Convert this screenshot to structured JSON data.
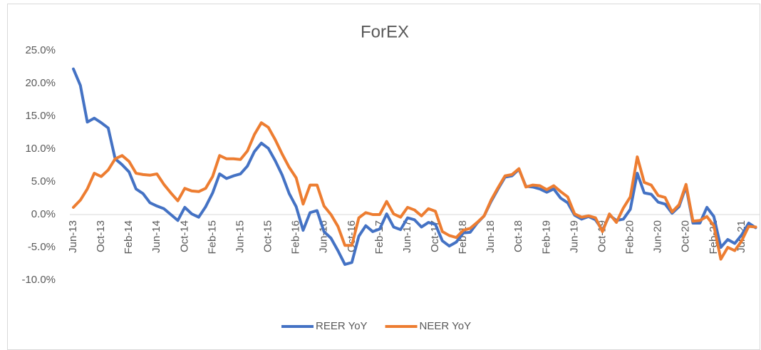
{
  "chart_data": {
    "type": "line",
    "title": "ForEX",
    "categories": [
      "Jun-13",
      null,
      null,
      null,
      "Oct-13",
      null,
      null,
      null,
      "Feb-14",
      null,
      null,
      null,
      "Jun-14",
      null,
      null,
      null,
      "Oct-14",
      null,
      null,
      null,
      "Feb-15",
      null,
      null,
      null,
      "Jun-15",
      null,
      null,
      null,
      "Oct-15",
      null,
      null,
      null,
      "Feb-16",
      null,
      null,
      null,
      "Jun-16",
      null,
      null,
      null,
      "Oct-16",
      null,
      null,
      null,
      "Feb-17",
      null,
      null,
      null,
      "Jun-17",
      null,
      null,
      null,
      "Oct-17",
      null,
      null,
      null,
      "Feb-18",
      null,
      null,
      null,
      "Jun-18",
      null,
      null,
      null,
      "Oct-18",
      null,
      null,
      null,
      "Feb-19",
      null,
      null,
      null,
      "Jun-19",
      null,
      null,
      null,
      "Oct-19",
      null,
      null,
      null,
      "Feb-20",
      null,
      null,
      null,
      "Jun-20",
      null,
      null,
      null,
      "Oct-20",
      null,
      null,
      null,
      "Feb-21",
      null,
      null,
      null,
      "Jun-21",
      null,
      null
    ],
    "series": [
      {
        "name": "REER YoY",
        "color": "#4472c4",
        "values": [
          22.2,
          19.7,
          14.1,
          14.7,
          14.0,
          13.2,
          8.5,
          7.6,
          6.5,
          3.9,
          3.2,
          1.8,
          1.3,
          0.9,
          0.0,
          -0.9,
          1.1,
          0.1,
          -0.4,
          1.2,
          3.3,
          6.2,
          5.5,
          5.9,
          6.2,
          7.4,
          9.6,
          10.9,
          10.1,
          8.2,
          6.0,
          3.2,
          1.2,
          -2.4,
          0.3,
          0.6,
          -2.6,
          -3.6,
          -5.5,
          -7.6,
          -7.3,
          -3.3,
          -1.7,
          -2.6,
          -2.2,
          0.1,
          -1.9,
          -2.3,
          -0.5,
          -0.8,
          -1.9,
          -1.2,
          -1.5,
          -4.0,
          -4.8,
          -4.2,
          -2.8,
          -2.7,
          -1.3,
          -0.2,
          2.0,
          3.9,
          5.7,
          5.9,
          6.9,
          4.3,
          4.2,
          3.9,
          3.4,
          3.9,
          2.5,
          1.8,
          -0.1,
          -0.7,
          -0.3,
          -0.8,
          -2.4,
          -0.1,
          -0.9,
          -0.7,
          0.8,
          6.3,
          3.3,
          3.1,
          1.9,
          1.6,
          0.2,
          1.2,
          4.3,
          -1.3,
          -1.3,
          1.1,
          -0.3,
          -5.0,
          -3.8,
          -4.4,
          -3.1,
          -1.3,
          -2.0
        ]
      },
      {
        "name": "NEER YoY",
        "color": "#ed7d31",
        "values": [
          1.1,
          2.2,
          3.9,
          6.3,
          5.8,
          6.8,
          8.5,
          9.0,
          8.1,
          6.3,
          6.1,
          6.0,
          6.2,
          4.6,
          3.3,
          2.1,
          4.0,
          3.6,
          3.5,
          4.0,
          5.8,
          9.0,
          8.5,
          8.5,
          8.4,
          9.7,
          12.2,
          14.0,
          13.3,
          11.4,
          9.2,
          7.2,
          5.6,
          1.6,
          4.5,
          4.5,
          1.3,
          0.0,
          -1.8,
          -4.7,
          -4.7,
          -0.5,
          0.3,
          0.0,
          0.0,
          2.0,
          0.1,
          -0.4,
          1.1,
          0.7,
          -0.2,
          0.9,
          0.5,
          -2.6,
          -3.2,
          -3.5,
          -2.4,
          -2.1,
          -1.2,
          -0.2,
          2.2,
          4.1,
          5.9,
          6.1,
          7.0,
          4.2,
          4.5,
          4.4,
          3.8,
          4.4,
          3.5,
          2.7,
          0.1,
          -0.4,
          -0.2,
          -0.5,
          -2.6,
          0.1,
          -1.2,
          1.0,
          2.7,
          8.8,
          4.9,
          4.5,
          2.9,
          2.6,
          0.4,
          1.5,
          4.6,
          -1.0,
          -0.9,
          -0.3,
          -1.7,
          -6.8,
          -5.0,
          -5.5,
          -4.0,
          -1.8,
          -1.9
        ]
      }
    ],
    "ylim": [
      -10,
      25
    ],
    "yticks": [
      {
        "value": -10,
        "label": "-10.0%"
      },
      {
        "value": -5,
        "label": "-5.0%"
      },
      {
        "value": 0,
        "label": "0.0%"
      },
      {
        "value": 5,
        "label": "5.0%"
      },
      {
        "value": 10,
        "label": "10.0%"
      },
      {
        "value": 15,
        "label": "15.0%"
      },
      {
        "value": 20,
        "label": "20.0%"
      },
      {
        "value": 25,
        "label": "25.0%"
      }
    ],
    "grid": false,
    "legend": "bottom"
  }
}
